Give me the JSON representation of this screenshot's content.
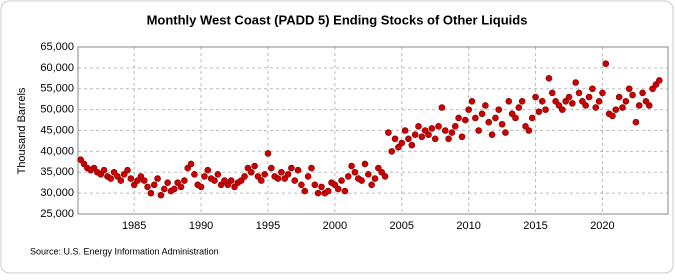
{
  "chart_data": {
    "type": "scatter",
    "title": "Monthly West Coast (PADD 5) Ending Stocks of Other Liquids",
    "y_label": "Thousand Barrels",
    "source": "Source: U.S. Energy Information Administration",
    "color": "#cc0000",
    "grid": true,
    "xlim": [
      1980.8,
      2024.9
    ],
    "xticks": [
      1985,
      1990,
      1995,
      2000,
      2005,
      2010,
      2015,
      2020
    ],
    "ylim": [
      25000,
      65000
    ],
    "yticks": [
      {
        "value": 25000,
        "label": "25,000"
      },
      {
        "value": 30000,
        "label": "30,000"
      },
      {
        "value": 35000,
        "label": "35,000"
      },
      {
        "value": 40000,
        "label": "40,000"
      },
      {
        "value": 45000,
        "label": "45,000"
      },
      {
        "value": 50000,
        "label": "50,000"
      },
      {
        "value": 55000,
        "label": "55,000"
      },
      {
        "value": 60000,
        "label": "60,000"
      },
      {
        "value": 65000,
        "label": "65,000"
      }
    ],
    "x": [
      1981,
      1981.25,
      1981.5,
      1981.75,
      1982,
      1982.25,
      1982.5,
      1982.75,
      1983,
      1983.25,
      1983.5,
      1983.75,
      1984,
      1984.25,
      1984.5,
      1984.75,
      1985,
      1985.25,
      1985.5,
      1985.75,
      1986,
      1986.25,
      1986.5,
      1986.75,
      1987,
      1987.25,
      1987.5,
      1987.75,
      1988,
      1988.25,
      1988.5,
      1988.75,
      1989,
      1989.25,
      1989.5,
      1989.75,
      1990,
      1990.25,
      1990.5,
      1990.75,
      1991,
      1991.25,
      1991.5,
      1991.75,
      1992,
      1992.25,
      1992.5,
      1992.75,
      1993,
      1993.25,
      1993.5,
      1993.75,
      1994,
      1994.25,
      1994.5,
      1994.75,
      1995,
      1995.25,
      1995.5,
      1995.75,
      1996,
      1996.25,
      1996.5,
      1996.75,
      1997,
      1997.25,
      1997.5,
      1997.75,
      1998,
      1998.25,
      1998.5,
      1998.75,
      1999,
      1999.25,
      1999.5,
      1999.75,
      2000,
      2000.25,
      2000.5,
      2000.75,
      2001,
      2001.25,
      2001.5,
      2001.75,
      2002,
      2002.25,
      2002.5,
      2002.75,
      2003,
      2003.25,
      2003.5,
      2003.75,
      2004,
      2004.25,
      2004.5,
      2004.75,
      2005,
      2005.25,
      2005.5,
      2005.75,
      2006,
      2006.25,
      2006.5,
      2006.75,
      2007,
      2007.25,
      2007.5,
      2007.75,
      2008,
      2008.25,
      2008.5,
      2008.75,
      2009,
      2009.25,
      2009.5,
      2009.75,
      2010,
      2010.25,
      2010.5,
      2010.75,
      2011,
      2011.25,
      2011.5,
      2011.75,
      2012,
      2012.25,
      2012.5,
      2012.75,
      2013,
      2013.25,
      2013.5,
      2013.75,
      2014,
      2014.25,
      2014.5,
      2014.75,
      2015,
      2015.25,
      2015.5,
      2015.75,
      2016,
      2016.25,
      2016.5,
      2016.75,
      2017,
      2017.25,
      2017.5,
      2017.75,
      2018,
      2018.25,
      2018.5,
      2018.75,
      2019,
      2019.25,
      2019.5,
      2019.75,
      2020,
      2020.25,
      2020.5,
      2020.75,
      2021,
      2021.25,
      2021.5,
      2021.75,
      2022,
      2022.25,
      2022.5,
      2022.75,
      2023,
      2023.25,
      2023.5,
      2023.75,
      2024,
      2024.25
    ],
    "values": [
      38000,
      37000,
      36000,
      35500,
      36000,
      35000,
      34500,
      35500,
      34000,
      33500,
      35000,
      34000,
      33000,
      34500,
      35500,
      33500,
      32000,
      33000,
      34000,
      33000,
      31500,
      30000,
      32000,
      33500,
      29500,
      31000,
      32500,
      30500,
      31000,
      32500,
      31500,
      33000,
      36000,
      37000,
      34500,
      32000,
      31500,
      34000,
      35500,
      33500,
      33000,
      34500,
      32000,
      33000,
      32000,
      33000,
      31500,
      32500,
      33000,
      34000,
      36000,
      35000,
      36500,
      34000,
      33000,
      34500,
      39500,
      36000,
      34000,
      33500,
      35000,
      33500,
      34500,
      36000,
      33000,
      35500,
      32000,
      30500,
      34000,
      36000,
      32000,
      30000,
      31500,
      30000,
      30500,
      32500,
      32000,
      31000,
      33000,
      30500,
      34000,
      36500,
      35000,
      33500,
      33000,
      37000,
      34500,
      32000,
      33500,
      36000,
      35000,
      34000,
      44500,
      40000,
      43000,
      41000,
      42000,
      45000,
      43000,
      41500,
      44000,
      46000,
      43500,
      45000,
      44000,
      45500,
      43000,
      46000,
      50500,
      45000,
      43000,
      44500,
      46000,
      48000,
      43500,
      47500,
      50000,
      52000,
      48000,
      45000,
      49000,
      51000,
      47000,
      44000,
      48000,
      50000,
      46500,
      44500,
      52000,
      49000,
      48000,
      50500,
      52000,
      46000,
      45000,
      48000,
      53000,
      49500,
      52000,
      50000,
      57500,
      54000,
      52000,
      51000,
      50000,
      52000,
      53000,
      51500,
      56500,
      54000,
      52000,
      51000,
      53000,
      55000,
      50500,
      52000,
      54000,
      61000,
      49000,
      48500,
      50000,
      53000,
      50500,
      52000,
      55000,
      53500,
      47000,
      51000,
      54000,
      52000,
      51000,
      55000,
      56000,
      57000
    ]
  }
}
